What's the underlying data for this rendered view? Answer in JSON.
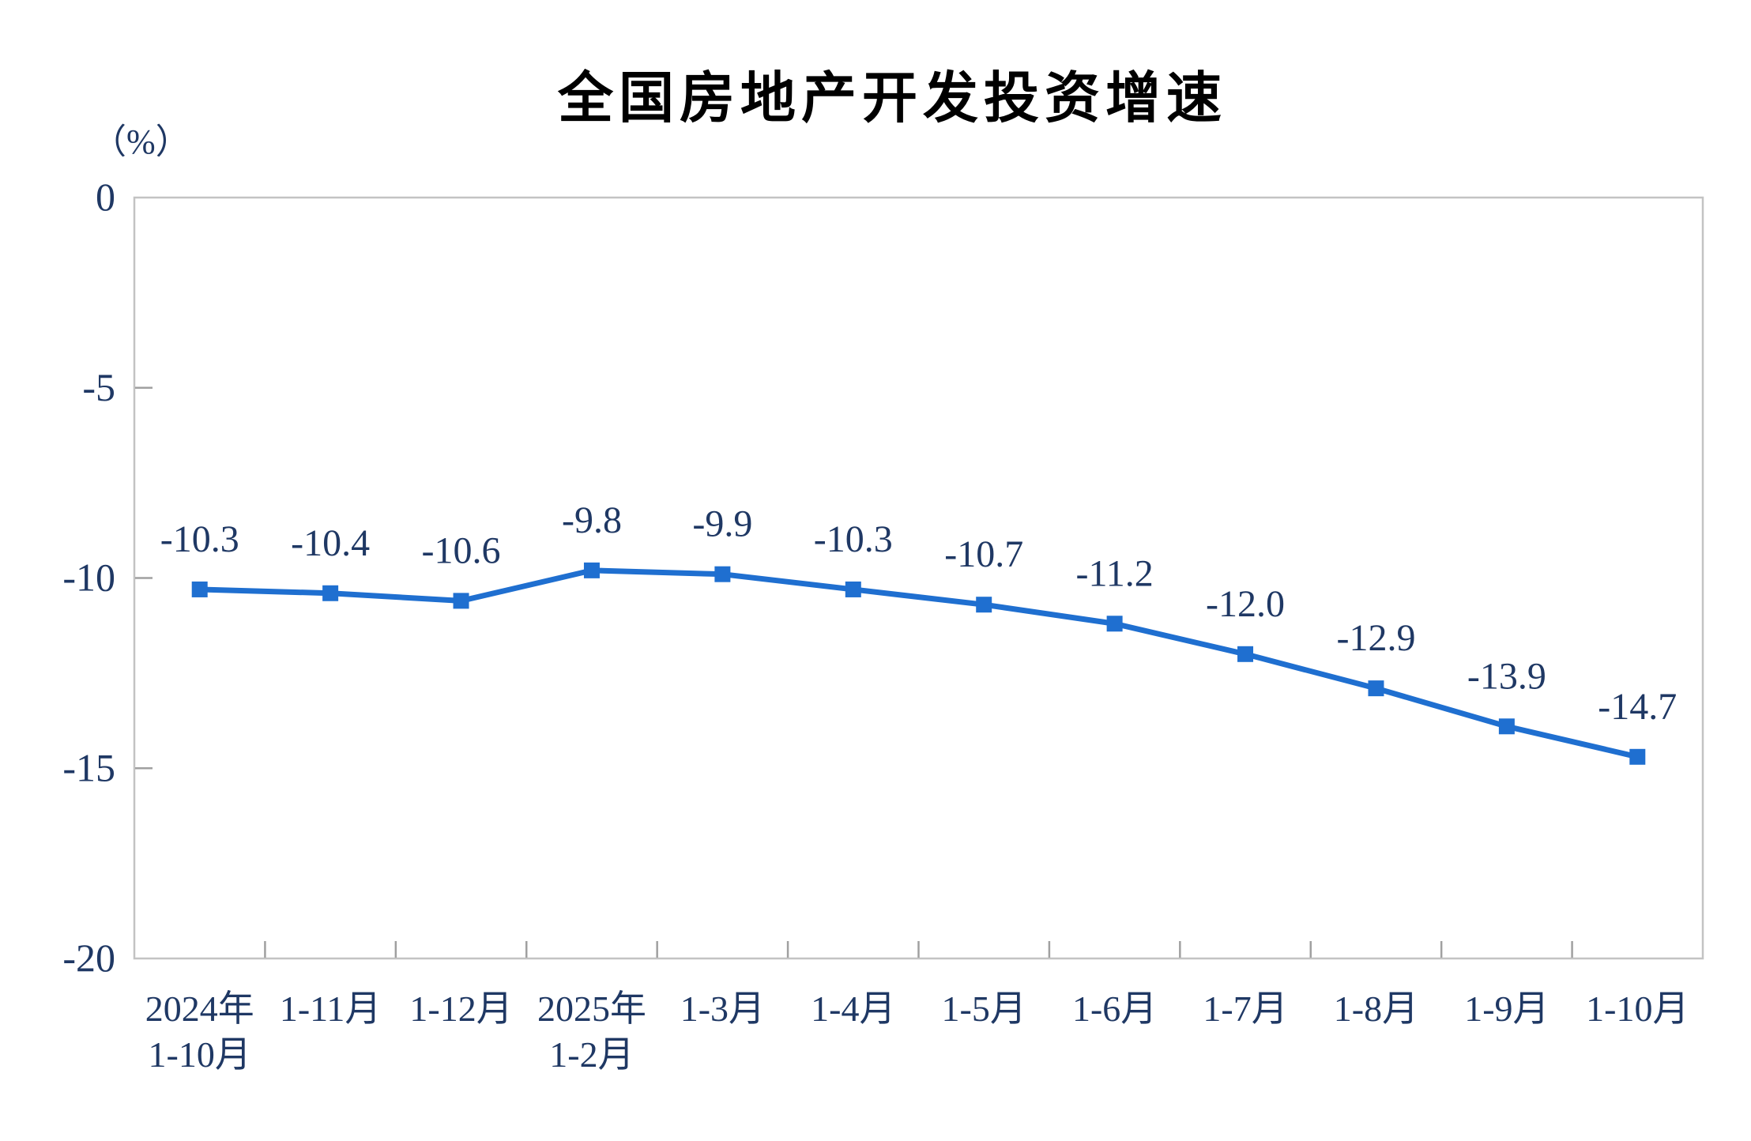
{
  "page": {
    "background": "#ffffff"
  },
  "chart": {
    "title": "全国房地产开发投资增速",
    "unit_label": "（%）"
  },
  "chart_data": {
    "type": "line",
    "title": "全国房地产开发投资增速",
    "unit": "%",
    "categories": [
      "2024年\n1-10月",
      "1-11月",
      "1-12月",
      "2025年\n1-2月",
      "1-3月",
      "1-4月",
      "1-5月",
      "1-6月",
      "1-7月",
      "1-8月",
      "1-9月",
      "1-10月"
    ],
    "series": [
      {
        "name": "全国房地产开发投资增速",
        "values": [
          -10.3,
          -10.4,
          -10.6,
          -9.8,
          -9.9,
          -10.3,
          -10.7,
          -11.2,
          -12.0,
          -12.9,
          -13.9,
          -14.7
        ]
      }
    ],
    "data_labels": [
      "-10.3",
      "-10.4",
      "-10.6",
      "-9.8",
      "-9.9",
      "-10.3",
      "-10.7",
      "-11.2",
      "-12.0",
      "-12.9",
      "-13.9",
      "-14.7"
    ],
    "ylim": [
      -20,
      0
    ],
    "yticks": [
      0,
      -5,
      -10,
      -15,
      -20
    ],
    "ytick_labels": [
      "0",
      "-5",
      "-10",
      "-15",
      "-20"
    ],
    "grid": false,
    "legend": "none",
    "marker": "square",
    "colors": {
      "line": "#1F6FD0",
      "marker": "#1F6FD0",
      "text": "#1F3864",
      "title": "#000000",
      "plot_border": "#C3C3C3",
      "tick": "#A0A0A0"
    }
  }
}
